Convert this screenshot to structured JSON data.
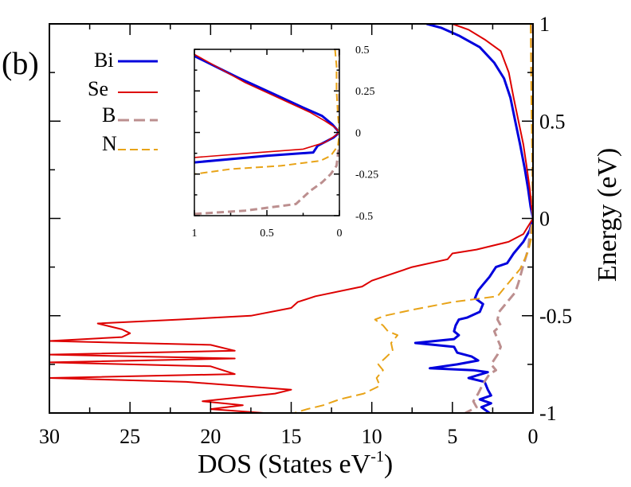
{
  "panel_label": "(b)",
  "chart_data": [
    {
      "id": "main",
      "type": "line",
      "xlabel": "DOS (States eV",
      "xlabel_sup": "-1",
      "xlabel_end": ")",
      "ylabel": "Energy (eV)",
      "xlim": [
        30,
        0
      ],
      "ylim": [
        -1,
        1
      ],
      "x_ticks": [
        30,
        25,
        20,
        15,
        10,
        5,
        0
      ],
      "y_ticks": [
        -1,
        -0.5,
        0,
        0.5,
        1
      ],
      "legend_position": "top-left",
      "series": [
        {
          "name": "Bi",
          "color": "#0000dd",
          "dash": "solid",
          "points": [
            [
              6.6,
              1.0
            ],
            [
              5.7,
              0.98
            ],
            [
              4.6,
              0.94
            ],
            [
              3.3,
              0.88
            ],
            [
              2.4,
              0.8
            ],
            [
              1.8,
              0.72
            ],
            [
              1.4,
              0.62
            ],
            [
              1.1,
              0.5
            ],
            [
              0.8,
              0.38
            ],
            [
              0.5,
              0.25
            ],
            [
              0.3,
              0.15
            ],
            [
              0.15,
              0.06
            ],
            [
              0,
              0
            ],
            [
              0.2,
              -0.06
            ],
            [
              0.6,
              -0.12
            ],
            [
              1.2,
              -0.18
            ],
            [
              1.6,
              -0.23
            ],
            [
              2.3,
              -0.25
            ],
            [
              2.7,
              -0.3
            ],
            [
              3.1,
              -0.34
            ],
            [
              3.4,
              -0.37
            ],
            [
              3.6,
              -0.41
            ],
            [
              3.1,
              -0.44
            ],
            [
              3.3,
              -0.48
            ],
            [
              4.1,
              -0.51
            ],
            [
              4.6,
              -0.52
            ],
            [
              4.8,
              -0.55
            ],
            [
              4.9,
              -0.58
            ],
            [
              4.6,
              -0.6
            ],
            [
              4.9,
              -0.62
            ],
            [
              7.3,
              -0.64
            ],
            [
              4.9,
              -0.66
            ],
            [
              4.7,
              -0.69
            ],
            [
              3.8,
              -0.71
            ],
            [
              3.4,
              -0.73
            ],
            [
              4.7,
              -0.75
            ],
            [
              6.4,
              -0.77
            ],
            [
              3.7,
              -0.78
            ],
            [
              2.8,
              -0.79
            ],
            [
              4.0,
              -0.82
            ],
            [
              3.0,
              -0.84
            ],
            [
              2.8,
              -0.88
            ],
            [
              2.6,
              -0.91
            ],
            [
              3.3,
              -0.93
            ],
            [
              2.6,
              -0.95
            ],
            [
              3.2,
              -0.97
            ],
            [
              2.7,
              -1.0
            ]
          ]
        },
        {
          "name": "Se",
          "color": "#dd0000",
          "dash": "solid",
          "points": [
            [
              5.0,
              1.0
            ],
            [
              4.0,
              0.97
            ],
            [
              3.0,
              0.92
            ],
            [
              2.0,
              0.86
            ],
            [
              1.5,
              0.75
            ],
            [
              1.2,
              0.62
            ],
            [
              0.9,
              0.5
            ],
            [
              0.6,
              0.38
            ],
            [
              0.4,
              0.27
            ],
            [
              0.2,
              0.15
            ],
            [
              0.1,
              0.07
            ],
            [
              0,
              0
            ],
            [
              0.3,
              -0.04
            ],
            [
              0.6,
              -0.08
            ],
            [
              1.5,
              -0.12
            ],
            [
              3.5,
              -0.16
            ],
            [
              5.0,
              -0.18
            ],
            [
              5.3,
              -0.21
            ],
            [
              7.5,
              -0.25
            ],
            [
              10.0,
              -0.32
            ],
            [
              10.6,
              -0.35
            ],
            [
              13.5,
              -0.4
            ],
            [
              14.6,
              -0.43
            ],
            [
              15.0,
              -0.46
            ],
            [
              17.5,
              -0.5
            ],
            [
              22.0,
              -0.52
            ],
            [
              27.0,
              -0.54
            ],
            [
              25.5,
              -0.57
            ],
            [
              25.0,
              -0.59
            ],
            [
              25.5,
              -0.61
            ],
            [
              30.0,
              -0.63
            ],
            [
              20.0,
              -0.65
            ],
            [
              18.5,
              -0.68
            ],
            [
              30.0,
              -0.7
            ],
            [
              18.5,
              -0.72
            ],
            [
              30.0,
              -0.74
            ],
            [
              20.0,
              -0.76
            ],
            [
              18.5,
              -0.8
            ],
            [
              30.0,
              -0.82
            ],
            [
              21.5,
              -0.84
            ],
            [
              15.0,
              -0.88
            ],
            [
              16.0,
              -0.9
            ],
            [
              20.5,
              -0.94
            ],
            [
              18.0,
              -0.96
            ],
            [
              20.0,
              -0.98
            ],
            [
              16.7,
              -1.0
            ]
          ]
        },
        {
          "name": "B",
          "color": "#bc8f8f",
          "dash": "dashed",
          "points": [
            [
              0.1,
              1.0
            ],
            [
              0.05,
              0.6
            ],
            [
              0,
              0
            ],
            [
              0.2,
              -0.08
            ],
            [
              0.3,
              -0.16
            ],
            [
              0.6,
              -0.24
            ],
            [
              0.9,
              -0.33
            ],
            [
              1.1,
              -0.38
            ],
            [
              1.6,
              -0.43
            ],
            [
              2.1,
              -0.48
            ],
            [
              2.2,
              -0.52
            ],
            [
              2.0,
              -0.55
            ],
            [
              2.4,
              -0.58
            ],
            [
              2.2,
              -0.62
            ],
            [
              2.0,
              -0.66
            ],
            [
              2.2,
              -0.7
            ],
            [
              2.6,
              -0.75
            ],
            [
              2.3,
              -0.78
            ],
            [
              2.7,
              -0.8
            ],
            [
              3.1,
              -0.85
            ],
            [
              3.4,
              -0.9
            ],
            [
              3.7,
              -0.94
            ],
            [
              3.5,
              -0.97
            ],
            [
              4.2,
              -1.0
            ]
          ]
        },
        {
          "name": "N",
          "color": "#e8a317",
          "dash": "dashed",
          "points": [
            [
              0.15,
              1.0
            ],
            [
              0.1,
              0.6
            ],
            [
              0,
              0
            ],
            [
              0.1,
              -0.1
            ],
            [
              0.3,
              -0.17
            ],
            [
              0.8,
              -0.26
            ],
            [
              1.6,
              -0.34
            ],
            [
              2.2,
              -0.4
            ],
            [
              5.0,
              -0.43
            ],
            [
              7.5,
              -0.47
            ],
            [
              9.2,
              -0.5
            ],
            [
              9.8,
              -0.52
            ],
            [
              9.3,
              -0.55
            ],
            [
              9.0,
              -0.58
            ],
            [
              8.4,
              -0.6
            ],
            [
              8.8,
              -0.64
            ],
            [
              8.7,
              -0.68
            ],
            [
              9.2,
              -0.72
            ],
            [
              9.6,
              -0.75
            ],
            [
              9.3,
              -0.78
            ],
            [
              9.7,
              -0.82
            ],
            [
              9.5,
              -0.86
            ],
            [
              10.5,
              -0.9
            ],
            [
              12.0,
              -0.93
            ],
            [
              13.0,
              -0.96
            ],
            [
              14.0,
              -0.98
            ],
            [
              14.8,
              -1.0
            ]
          ]
        }
      ]
    },
    {
      "id": "inset",
      "type": "line",
      "xlim": [
        1,
        0
      ],
      "ylim": [
        -0.5,
        0.5
      ],
      "x_ticks": [
        1,
        0.5,
        0
      ],
      "y_ticks": [
        -0.5,
        -0.25,
        0,
        0.25,
        0.5
      ],
      "series": [
        {
          "name": "Bi",
          "color": "#0000dd",
          "dash": "solid",
          "points": [
            [
              1.0,
              0.46
            ],
            [
              0.7,
              0.33
            ],
            [
              0.45,
              0.23
            ],
            [
              0.25,
              0.15
            ],
            [
              0.12,
              0.1
            ],
            [
              0.05,
              0.05
            ],
            [
              0.01,
              0.01
            ],
            [
              0,
              0
            ],
            [
              0.04,
              -0.03
            ],
            [
              0.15,
              -0.08
            ],
            [
              0.18,
              -0.12
            ],
            [
              0.5,
              -0.14
            ],
            [
              1.0,
              -0.18
            ]
          ]
        },
        {
          "name": "Se",
          "color": "#dd0000",
          "dash": "solid",
          "points": [
            [
              1.0,
              0.47
            ],
            [
              0.65,
              0.3
            ],
            [
              0.4,
              0.2
            ],
            [
              0.2,
              0.12
            ],
            [
              0.1,
              0.07
            ],
            [
              0.03,
              0.03
            ],
            [
              0,
              0
            ],
            [
              0.03,
              -0.02
            ],
            [
              0.1,
              -0.06
            ],
            [
              0.25,
              -0.1
            ],
            [
              0.55,
              -0.12
            ],
            [
              1.0,
              -0.15
            ]
          ]
        },
        {
          "name": "B",
          "color": "#bc8f8f",
          "dash": "dashed",
          "points": [
            [
              0,
              0.5
            ],
            [
              0,
              0.1
            ],
            [
              0,
              0
            ],
            [
              0.005,
              -0.1
            ],
            [
              0.02,
              -0.2
            ],
            [
              0.06,
              -0.25
            ],
            [
              0.12,
              -0.3
            ],
            [
              0.2,
              -0.35
            ],
            [
              0.3,
              -0.43
            ],
            [
              0.65,
              -0.47
            ],
            [
              1.0,
              -0.49
            ]
          ]
        },
        {
          "name": "N",
          "color": "#e8a317",
          "dash": "dashed",
          "points": [
            [
              0.03,
              0.5
            ],
            [
              0.02,
              0.4
            ],
            [
              0.02,
              0.25
            ],
            [
              0.01,
              0.1
            ],
            [
              0,
              0
            ],
            [
              0.01,
              -0.08
            ],
            [
              0.06,
              -0.14
            ],
            [
              0.13,
              -0.17
            ],
            [
              0.4,
              -0.2
            ],
            [
              0.75,
              -0.22
            ],
            [
              1.0,
              -0.25
            ]
          ]
        }
      ]
    }
  ]
}
